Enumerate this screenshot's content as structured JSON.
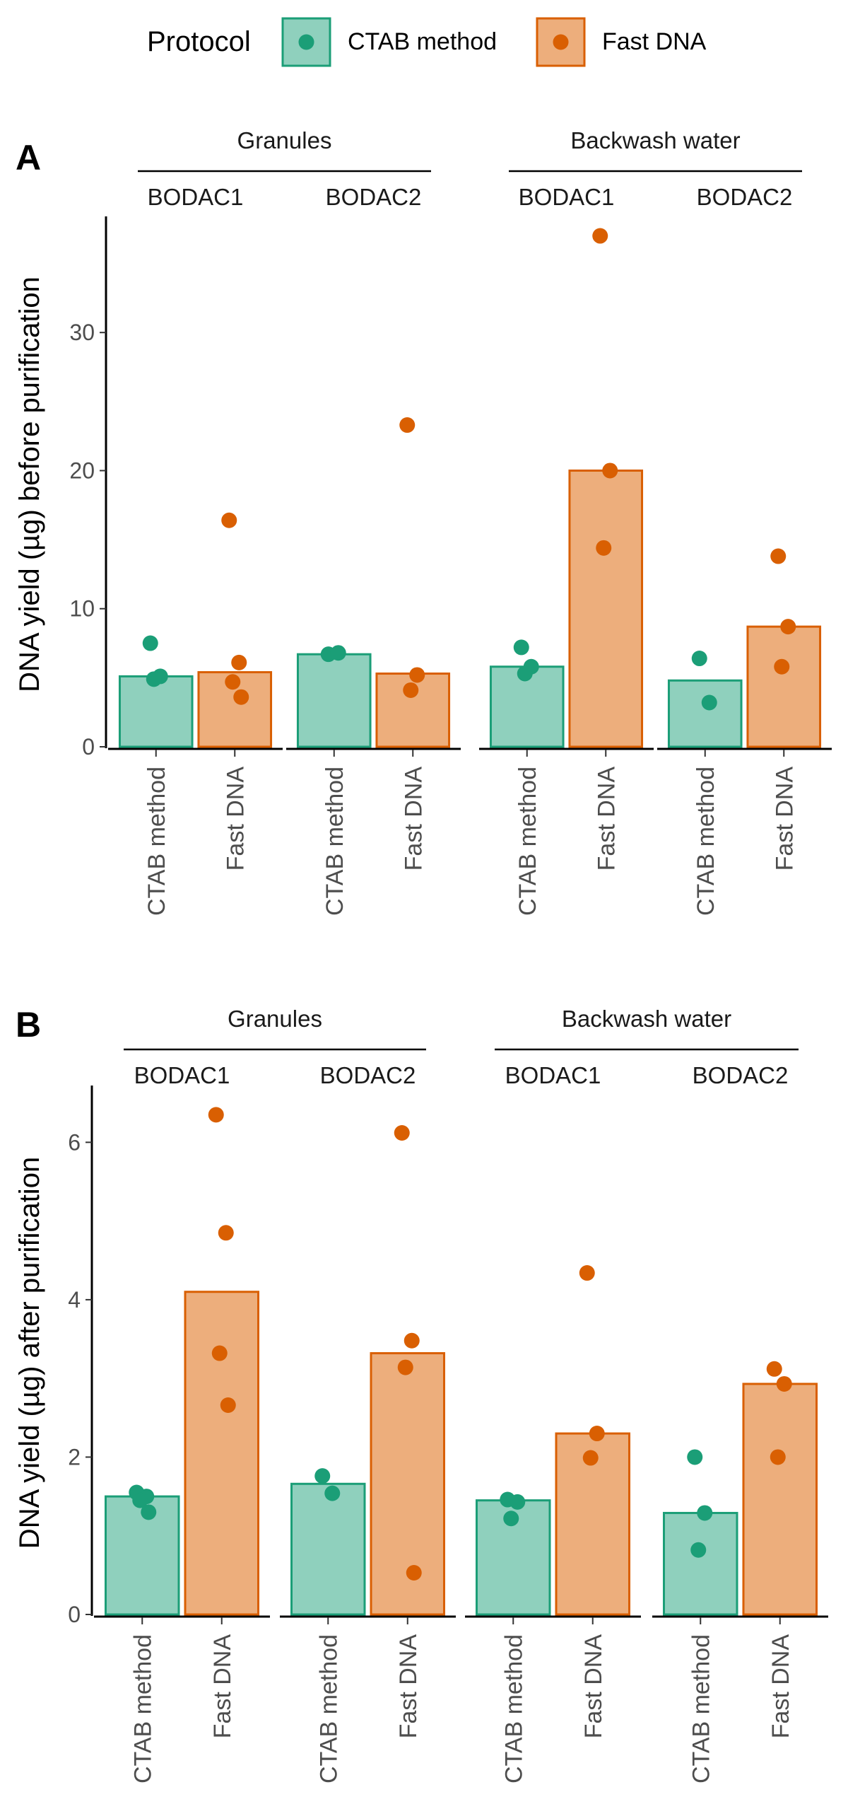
{
  "legend": {
    "title": "Protocol",
    "items": [
      {
        "label": "CTAB method",
        "fill": "#8fd0bd",
        "stroke": "#1b9e77",
        "point": "#1b9e77"
      },
      {
        "label": "Fast DNA",
        "fill": "#edae7c",
        "stroke": "#d95f02",
        "point": "#d95f02"
      }
    ]
  },
  "chart_data": [
    {
      "type": "bar",
      "panel_tag": "A",
      "ylabel": "DNA yield (µg) before purification",
      "ylim": [
        0,
        38
      ],
      "yticks": [
        0,
        10,
        20,
        30
      ],
      "groups": [
        {
          "label": "Granules",
          "subgroups": [
            {
              "label": "BODAC1",
              "bars": [
                {
                  "protocol": "CTAB method",
                  "value": 5.1,
                  "points": [
                    7.5,
                    5.1,
                    4.9
                  ]
                },
                {
                  "protocol": "Fast DNA",
                  "value": 5.4,
                  "points": [
                    16.4,
                    6.1,
                    4.7,
                    3.6
                  ]
                }
              ]
            },
            {
              "label": "BODAC2",
              "bars": [
                {
                  "protocol": "CTAB method",
                  "value": 6.7,
                  "points": [
                    6.7,
                    6.8
                  ]
                },
                {
                  "protocol": "Fast DNA",
                  "value": 5.3,
                  "points": [
                    23.3,
                    5.2,
                    4.1
                  ]
                }
              ]
            }
          ]
        },
        {
          "label": "Backwash water",
          "subgroups": [
            {
              "label": "BODAC1",
              "bars": [
                {
                  "protocol": "CTAB method",
                  "value": 5.8,
                  "points": [
                    7.2,
                    5.8,
                    5.3
                  ]
                },
                {
                  "protocol": "Fast DNA",
                  "value": 20.0,
                  "points": [
                    37.0,
                    20.0,
                    14.4
                  ]
                }
              ]
            },
            {
              "label": "BODAC2",
              "bars": [
                {
                  "protocol": "CTAB method",
                  "value": 4.8,
                  "points": [
                    6.4,
                    3.2
                  ]
                },
                {
                  "protocol": "Fast DNA",
                  "value": 8.7,
                  "points": [
                    13.8,
                    8.7,
                    5.8
                  ]
                }
              ]
            }
          ]
        }
      ]
    },
    {
      "type": "bar",
      "panel_tag": "B",
      "ylabel": "DNA yield (µg) after purification",
      "ylim": [
        0,
        6.65
      ],
      "yticks": [
        0,
        2,
        4,
        6
      ],
      "groups": [
        {
          "label": "Granules",
          "subgroups": [
            {
              "label": "BODAC1",
              "bars": [
                {
                  "protocol": "CTAB method",
                  "value": 1.5,
                  "points": [
                    1.55,
                    1.5,
                    1.45,
                    1.3
                  ]
                },
                {
                  "protocol": "Fast DNA",
                  "value": 4.1,
                  "points": [
                    6.35,
                    4.85,
                    3.32,
                    2.66
                  ]
                }
              ]
            },
            {
              "label": "BODAC2",
              "bars": [
                {
                  "protocol": "CTAB method",
                  "value": 1.66,
                  "points": [
                    1.76,
                    1.54
                  ]
                },
                {
                  "protocol": "Fast DNA",
                  "value": 3.32,
                  "points": [
                    6.12,
                    3.48,
                    3.14,
                    0.53
                  ]
                }
              ]
            }
          ]
        },
        {
          "label": "Backwash water",
          "subgroups": [
            {
              "label": "BODAC1",
              "bars": [
                {
                  "protocol": "CTAB method",
                  "value": 1.45,
                  "points": [
                    1.46,
                    1.43,
                    1.22
                  ]
                },
                {
                  "protocol": "Fast DNA",
                  "value": 2.3,
                  "points": [
                    4.34,
                    2.3,
                    1.99
                  ]
                }
              ]
            },
            {
              "label": "BODAC2",
              "bars": [
                {
                  "protocol": "CTAB method",
                  "value": 1.29,
                  "points": [
                    2.0,
                    1.29,
                    0.82
                  ]
                },
                {
                  "protocol": "Fast DNA",
                  "value": 2.93,
                  "points": [
                    3.12,
                    2.93,
                    2.0
                  ]
                }
              ]
            }
          ]
        }
      ]
    }
  ]
}
